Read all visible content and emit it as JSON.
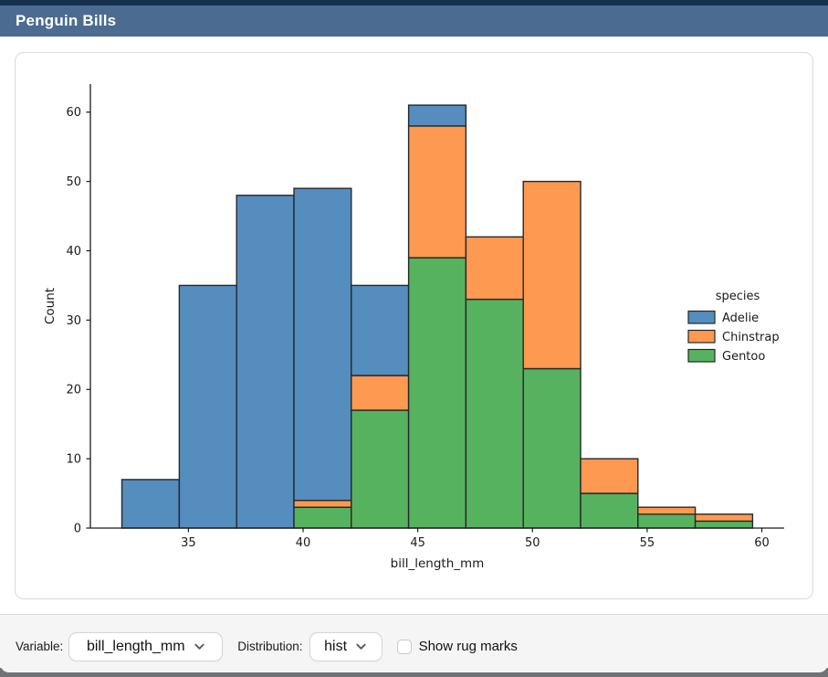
{
  "window": {
    "title": "Penguin Bills"
  },
  "controls": {
    "variable_label": "Variable:",
    "variable_value": "bill_length_mm",
    "distribution_label": "Distribution:",
    "distribution_value": "hist",
    "rug_label": "Show rug marks",
    "rug_checked": false,
    "chevron_icon": "chevron-down"
  },
  "colors": {
    "titlebar": "#4b6b90",
    "titlebar_strip": "#15304d",
    "bar_edge": "#26282b",
    "axis_text": "#1a1a1a",
    "adelie_blue": "#548dbe",
    "chinstrap_orange": "#fd9951",
    "gentoo_green": "#57b25f"
  },
  "chart_data": {
    "type": "bar",
    "subtype": "stacked-histogram",
    "title": "",
    "xlabel": "bill_length_mm",
    "ylabel": "Count",
    "bin_edges": [
      32.1,
      34.6,
      37.1,
      39.6,
      42.1,
      44.6,
      47.1,
      49.6,
      52.1,
      54.6,
      57.1,
      59.6
    ],
    "series": [
      {
        "name": "Adelie",
        "color": "#548dbe",
        "values": [
          7,
          35,
          48,
          45,
          13,
          3,
          0,
          0,
          0,
          0,
          0
        ]
      },
      {
        "name": "Chinstrap",
        "color": "#fd9951",
        "values": [
          0,
          0,
          0,
          1,
          5,
          19,
          9,
          27,
          5,
          1,
          1
        ]
      },
      {
        "name": "Gentoo",
        "color": "#57b25f",
        "values": [
          0,
          0,
          0,
          3,
          17,
          39,
          33,
          23,
          5,
          2,
          1
        ]
      }
    ],
    "stack_order_bottom_to_top": [
      "Gentoo",
      "Chinstrap",
      "Adelie"
    ],
    "bin_totals": [
      7,
      35,
      48,
      49,
      35,
      61,
      42,
      50,
      10,
      3,
      2
    ],
    "xticks": [
      35,
      40,
      45,
      50,
      55,
      60
    ],
    "yticks": [
      0,
      10,
      20,
      30,
      40,
      50,
      60
    ],
    "xlim": [
      30.725,
      60.975
    ],
    "ylim": [
      0,
      64.05
    ],
    "grid": false,
    "legend": {
      "title": "species",
      "entries": [
        "Adelie",
        "Chinstrap",
        "Gentoo"
      ],
      "position": "center-right"
    }
  }
}
